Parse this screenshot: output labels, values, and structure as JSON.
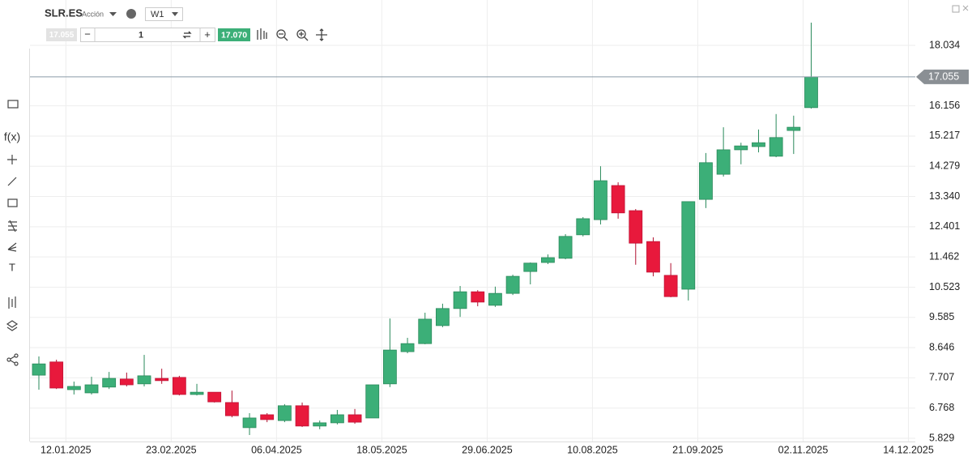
{
  "header": {
    "symbol": "SLR.ES",
    "kind": "Acción",
    "timeframe": "W1",
    "quantity": "1",
    "sell_price": "17.055",
    "buy_price": "17.070"
  },
  "toolbar": {
    "function": "f(x)",
    "text_tool": "T"
  },
  "chart_data": {
    "type": "candlestick",
    "categories": [
      null,
      null,
      "12.01.2025",
      null,
      null,
      null,
      null,
      null,
      "23.02.2025",
      null,
      null,
      null,
      null,
      null,
      "06.04.2025",
      null,
      null,
      null,
      null,
      null,
      "18.05.2025",
      null,
      null,
      null,
      null,
      null,
      "29.06.2025",
      null,
      null,
      null,
      null,
      null,
      "10.08.2025",
      null,
      null,
      null,
      null,
      null,
      "21.09.2025",
      null,
      null,
      null,
      null,
      null,
      "02.11.2025",
      null,
      null,
      null,
      null,
      null,
      "14.12.2025"
    ],
    "open": [
      7.79,
      8.2,
      7.34,
      7.24,
      7.42,
      7.67,
      7.52,
      7.69,
      7.72,
      7.19,
      7.26,
      6.94,
      6.16,
      6.56,
      6.38,
      6.84,
      6.21,
      6.31,
      6.56,
      6.46,
      7.52,
      8.52,
      8.77,
      9.33,
      9.86,
      10.38,
      9.96,
      10.33,
      11.01,
      11.29,
      11.42,
      12.15,
      12.62,
      13.68,
      12.9,
      11.94,
      10.89,
      10.46,
      13.25,
      14.03,
      14.79,
      14.89,
      14.59,
      15.39,
      16.1,
      null,
      null,
      null,
      null,
      null,
      null
    ],
    "high": [
      8.37,
      8.27,
      7.59,
      7.74,
      7.89,
      7.87,
      8.42,
      7.99,
      7.77,
      7.52,
      7.26,
      7.31,
      6.61,
      6.61,
      6.89,
      6.94,
      6.38,
      6.71,
      6.74,
      7.49,
      9.55,
      8.95,
      9.73,
      10.01,
      10.56,
      10.43,
      10.54,
      10.91,
      11.29,
      11.54,
      12.17,
      12.7,
      14.28,
      13.78,
      12.95,
      12.07,
      11.27,
      13.18,
      14.69,
      15.49,
      15.01,
      15.42,
      15.9,
      15.85,
      18.74,
      null,
      null,
      null,
      null,
      null,
      null
    ],
    "low": [
      7.34,
      7.36,
      7.19,
      7.19,
      7.36,
      7.44,
      7.44,
      7.52,
      7.16,
      7.16,
      6.94,
      6.48,
      5.93,
      6.33,
      6.33,
      6.18,
      6.11,
      6.26,
      6.28,
      6.46,
      7.42,
      8.47,
      8.75,
      9.28,
      9.6,
      9.93,
      9.91,
      10.28,
      10.61,
      11.24,
      11.39,
      12.1,
      12.47,
      12.65,
      11.22,
      10.86,
      10.21,
      10.11,
      12.98,
      13.96,
      14.34,
      14.71,
      14.56,
      14.66,
      16.07,
      null,
      null,
      null,
      null,
      null,
      null
    ],
    "close": [
      8.14,
      7.39,
      7.44,
      7.49,
      7.69,
      7.49,
      7.77,
      7.62,
      7.19,
      7.26,
      6.96,
      6.53,
      6.46,
      6.41,
      6.84,
      6.21,
      6.31,
      6.56,
      6.33,
      7.49,
      8.57,
      8.77,
      9.53,
      9.86,
      10.38,
      10.06,
      10.33,
      10.86,
      11.27,
      11.44,
      12.1,
      12.65,
      13.83,
      12.83,
      11.89,
      10.99,
      10.23,
      13.18,
      14.39,
      14.79,
      14.91,
      15.01,
      15.17,
      15.49,
      17.055,
      null,
      null,
      null,
      null,
      null,
      null
    ],
    "up_color": "#3caf78",
    "down_color": "#e8193c",
    "ylim": [
      5.729,
      19.443
    ],
    "yticks": [
      5.829,
      6.768,
      7.707,
      8.646,
      9.585,
      10.523,
      11.462,
      12.401,
      {
        "value": 13.34,
        "label": "13.340"
      },
      14.279,
      15.217,
      16.156,
      18.034
    ],
    "grid": true,
    "last_price": 17.055
  }
}
